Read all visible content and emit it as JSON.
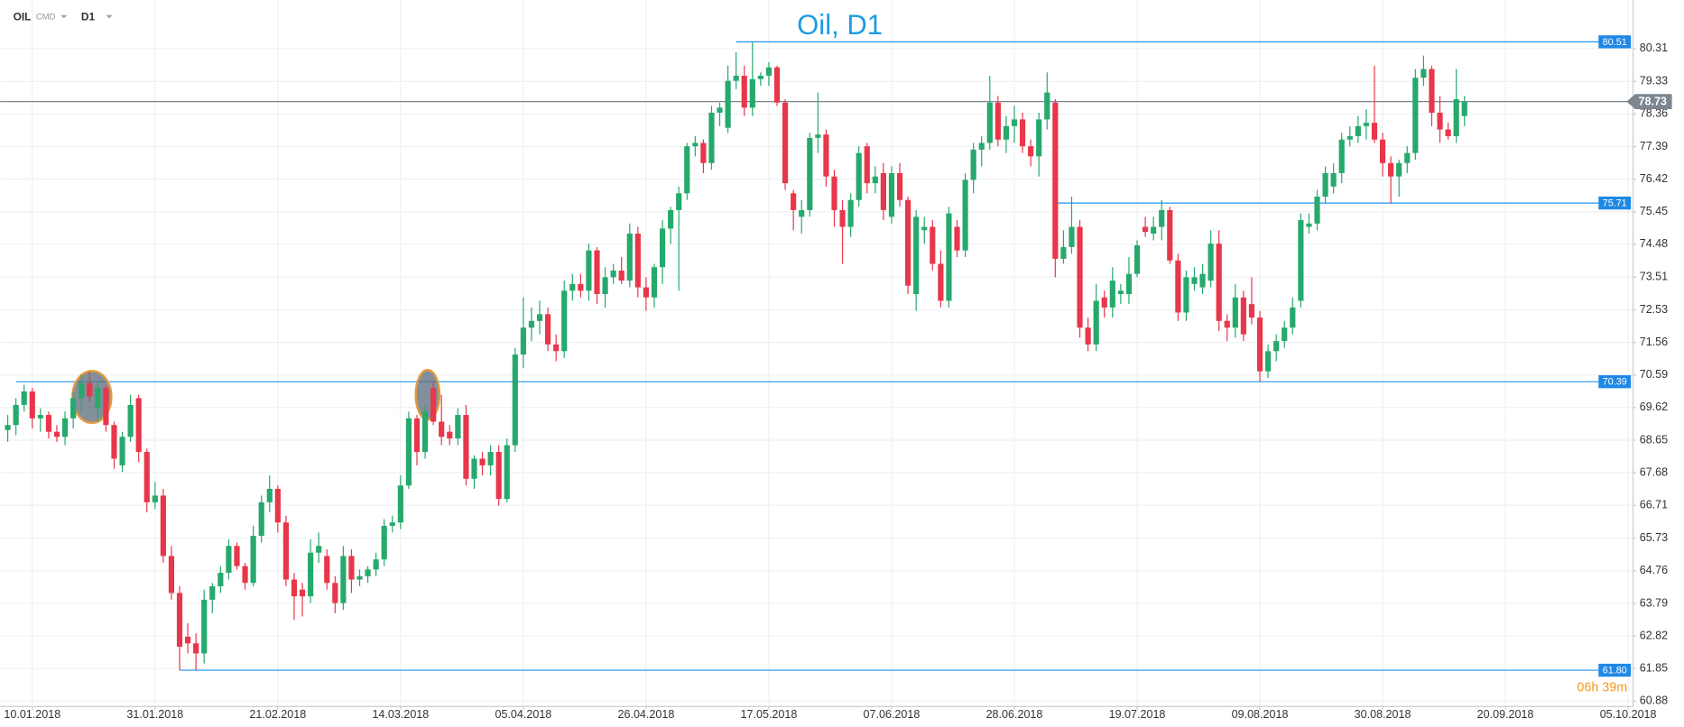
{
  "chart_data": {
    "type": "candlestick",
    "title": "Oil, D1",
    "symbol": "OIL",
    "market": "CMD",
    "timeframe": "D1",
    "countdown": "06h 39m",
    "up_color": "#26a96c",
    "down_color": "#e8364a",
    "level_color": "#2196f3",
    "price_color": "#7d858f",
    "grid": true,
    "xlim": [
      -0.92,
      198.6
    ],
    "xticks": [
      {
        "value": 3,
        "label": "10.01.2018"
      },
      {
        "value": 18,
        "label": "31.01.2018"
      },
      {
        "value": 33,
        "label": "21.02.2018"
      },
      {
        "value": 48,
        "label": "14.03.2018"
      },
      {
        "value": 63,
        "label": "05.04.2018"
      },
      {
        "value": 78,
        "label": "26.04.2018"
      },
      {
        "value": 93,
        "label": "17.05.2018"
      },
      {
        "value": 108,
        "label": "07.06.2018"
      },
      {
        "value": 123,
        "label": "28.06.2018"
      },
      {
        "value": 138,
        "label": "19.07.2018"
      },
      {
        "value": 153,
        "label": "09.08.2018"
      },
      {
        "value": 168,
        "label": "30.08.2018"
      },
      {
        "value": 183,
        "label": "20.09.2018"
      },
      {
        "value": 198,
        "label": "05.10.2018"
      }
    ],
    "ylim": [
      60.72,
      81.755
    ],
    "yticks": [
      80.31,
      79.33,
      78.36,
      77.39,
      76.42,
      75.45,
      74.48,
      73.51,
      72.53,
      71.56,
      70.59,
      69.62,
      68.65,
      67.68,
      66.71,
      65.73,
      64.76,
      63.79,
      62.82,
      61.85,
      60.88
    ],
    "levels": [
      {
        "value": 80.51,
        "from": 89
      },
      {
        "value": 75.71,
        "from": 128
      },
      {
        "value": 70.39,
        "from": 1
      },
      {
        "value": 61.8,
        "label": "61.80",
        "from": 21
      }
    ],
    "last_price": 78.73,
    "ohlc": [
      [
        68.95,
        69.4,
        68.6,
        69.1
      ],
      [
        69.1,
        69.9,
        68.8,
        69.7
      ],
      [
        69.7,
        70.3,
        69.5,
        70.1
      ],
      [
        70.1,
        70.2,
        69.0,
        69.3
      ],
      [
        69.3,
        69.6,
        68.9,
        69.4
      ],
      [
        69.4,
        69.5,
        68.7,
        68.9
      ],
      [
        68.9,
        69.1,
        68.6,
        68.75
      ],
      [
        68.75,
        69.5,
        68.5,
        69.3
      ],
      [
        69.3,
        70.1,
        69.0,
        69.9
      ],
      [
        69.9,
        70.6,
        69.5,
        70.35
      ],
      [
        70.35,
        70.7,
        69.8,
        69.95
      ],
      [
        69.6,
        70.4,
        69.2,
        70.2
      ],
      [
        70.2,
        70.3,
        68.9,
        69.1
      ],
      [
        69.1,
        69.2,
        67.8,
        68.1
      ],
      [
        67.9,
        68.9,
        67.7,
        68.75
      ],
      [
        68.75,
        70.0,
        68.6,
        69.7
      ],
      [
        69.9,
        70.0,
        68.0,
        68.3
      ],
      [
        68.3,
        68.4,
        66.5,
        66.8
      ],
      [
        66.8,
        67.4,
        66.6,
        67.0
      ],
      [
        67.0,
        67.2,
        65.0,
        65.2
      ],
      [
        65.2,
        65.5,
        63.9,
        64.1
      ],
      [
        64.1,
        64.3,
        61.8,
        62.5
      ],
      [
        62.8,
        63.2,
        62.3,
        62.6
      ],
      [
        62.6,
        62.9,
        61.8,
        62.3
      ],
      [
        62.3,
        64.2,
        62.0,
        63.9
      ],
      [
        63.9,
        64.4,
        63.5,
        64.3
      ],
      [
        64.3,
        64.9,
        64.1,
        64.7
      ],
      [
        64.7,
        65.7,
        64.5,
        65.5
      ],
      [
        65.5,
        65.6,
        64.8,
        64.9
      ],
      [
        64.9,
        65.0,
        64.2,
        64.4
      ],
      [
        64.4,
        66.1,
        64.3,
        65.8
      ],
      [
        65.8,
        67.0,
        65.6,
        66.8
      ],
      [
        66.8,
        67.6,
        66.5,
        67.2
      ],
      [
        67.2,
        67.3,
        65.9,
        66.2
      ],
      [
        66.2,
        66.4,
        64.3,
        64.5
      ],
      [
        64.5,
        64.7,
        63.3,
        64.0
      ],
      [
        64.2,
        64.4,
        63.4,
        64.0
      ],
      [
        64.0,
        65.7,
        63.8,
        65.3
      ],
      [
        65.3,
        65.9,
        65.0,
        65.5
      ],
      [
        65.2,
        65.4,
        64.2,
        64.4
      ],
      [
        64.4,
        64.6,
        63.5,
        63.8
      ],
      [
        63.8,
        65.5,
        63.6,
        65.2
      ],
      [
        65.2,
        65.4,
        64.1,
        64.5
      ],
      [
        64.5,
        64.8,
        64.3,
        64.6
      ],
      [
        64.6,
        64.9,
        64.4,
        64.8
      ],
      [
        64.8,
        65.3,
        64.6,
        65.1
      ],
      [
        65.1,
        66.3,
        64.9,
        66.1
      ],
      [
        66.1,
        66.4,
        65.9,
        66.2
      ],
      [
        66.2,
        67.6,
        66.0,
        67.3
      ],
      [
        67.3,
        69.5,
        67.2,
        69.3
      ],
      [
        69.3,
        69.4,
        67.9,
        68.3
      ],
      [
        68.3,
        69.7,
        68.1,
        69.5
      ],
      [
        70.2,
        70.4,
        69.1,
        69.2
      ],
      [
        69.2,
        70.0,
        68.5,
        68.75
      ],
      [
        68.9,
        69.1,
        68.5,
        68.7
      ],
      [
        68.7,
        69.6,
        68.5,
        69.4
      ],
      [
        69.4,
        69.7,
        67.3,
        67.5
      ],
      [
        67.5,
        68.2,
        67.2,
        68.1
      ],
      [
        68.1,
        68.3,
        67.6,
        67.9
      ],
      [
        67.9,
        68.5,
        67.6,
        68.3
      ],
      [
        68.3,
        68.5,
        66.7,
        66.9
      ],
      [
        66.9,
        68.7,
        66.8,
        68.5
      ],
      [
        68.5,
        71.4,
        68.3,
        71.2
      ],
      [
        71.2,
        72.9,
        70.8,
        72.0
      ],
      [
        72.0,
        72.6,
        71.6,
        72.2
      ],
      [
        72.2,
        72.8,
        71.8,
        72.4
      ],
      [
        72.4,
        72.6,
        71.3,
        71.5
      ],
      [
        71.5,
        71.8,
        71.0,
        71.3
      ],
      [
        71.3,
        73.4,
        71.1,
        73.1
      ],
      [
        73.1,
        73.6,
        72.8,
        73.3
      ],
      [
        73.3,
        73.6,
        72.9,
        73.1
      ],
      [
        73.1,
        74.5,
        72.8,
        74.3
      ],
      [
        74.3,
        74.4,
        72.7,
        73.0
      ],
      [
        73.0,
        73.8,
        72.6,
        73.5
      ],
      [
        73.5,
        73.9,
        73.3,
        73.7
      ],
      [
        73.7,
        74.1,
        73.3,
        73.4
      ],
      [
        73.4,
        75.1,
        73.2,
        74.8
      ],
      [
        74.8,
        75.0,
        72.9,
        73.2
      ],
      [
        73.2,
        73.5,
        72.5,
        72.9
      ],
      [
        72.9,
        73.9,
        72.6,
        73.8
      ],
      [
        73.8,
        75.2,
        73.3,
        74.95
      ],
      [
        74.95,
        75.6,
        74.5,
        75.5
      ],
      [
        75.5,
        76.2,
        73.1,
        76.0
      ],
      [
        76.0,
        77.5,
        75.8,
        77.4
      ],
      [
        77.4,
        77.7,
        77.1,
        77.5
      ],
      [
        77.5,
        77.6,
        76.6,
        76.9
      ],
      [
        76.9,
        78.6,
        76.7,
        78.4
      ],
      [
        78.4,
        78.7,
        78.0,
        78.55
      ],
      [
        77.95,
        79.8,
        77.8,
        79.35
      ],
      [
        79.35,
        80.2,
        79.1,
        79.5
      ],
      [
        79.5,
        79.8,
        78.3,
        78.55
      ],
      [
        78.55,
        80.51,
        78.3,
        79.4
      ],
      [
        79.4,
        79.6,
        79.2,
        79.5
      ],
      [
        79.5,
        79.9,
        79.2,
        79.75
      ],
      [
        79.75,
        79.8,
        78.6,
        78.7
      ],
      [
        78.7,
        78.8,
        76.1,
        76.3
      ],
      [
        76.0,
        76.1,
        74.9,
        75.5
      ],
      [
        75.3,
        75.8,
        74.8,
        75.5
      ],
      [
        75.5,
        77.8,
        75.3,
        77.65
      ],
      [
        77.65,
        79.0,
        77.2,
        77.75
      ],
      [
        77.75,
        77.9,
        76.2,
        76.5
      ],
      [
        76.5,
        76.7,
        75.0,
        75.5
      ],
      [
        75.5,
        75.8,
        73.9,
        75.0
      ],
      [
        75.0,
        76.0,
        74.7,
        75.8
      ],
      [
        75.8,
        77.4,
        75.6,
        77.2
      ],
      [
        77.4,
        77.5,
        76.0,
        76.3
      ],
      [
        76.3,
        76.8,
        76.0,
        76.5
      ],
      [
        76.6,
        76.9,
        75.2,
        75.5
      ],
      [
        75.3,
        76.8,
        75.1,
        76.6
      ],
      [
        76.6,
        76.9,
        75.6,
        75.8
      ],
      [
        75.8,
        75.9,
        73.0,
        73.25
      ],
      [
        73.0,
        75.5,
        72.5,
        75.3
      ],
      [
        74.9,
        75.3,
        74.5,
        75.0
      ],
      [
        75.0,
        75.2,
        73.7,
        73.9
      ],
      [
        73.9,
        74.3,
        72.6,
        72.8
      ],
      [
        72.8,
        75.6,
        72.6,
        75.4
      ],
      [
        75.0,
        75.2,
        74.1,
        74.3
      ],
      [
        74.3,
        76.6,
        74.1,
        76.4
      ],
      [
        76.4,
        77.5,
        76.0,
        77.3
      ],
      [
        77.3,
        77.7,
        76.8,
        77.5
      ],
      [
        77.5,
        79.5,
        77.3,
        78.7
      ],
      [
        78.7,
        78.9,
        77.4,
        77.6
      ],
      [
        77.6,
        78.3,
        77.2,
        78.0
      ],
      [
        78.0,
        78.6,
        77.5,
        78.2
      ],
      [
        78.2,
        78.4,
        77.2,
        77.4
      ],
      [
        77.4,
        77.6,
        76.8,
        77.1
      ],
      [
        77.1,
        78.4,
        76.5,
        78.2
      ],
      [
        78.2,
        79.6,
        77.9,
        79.0
      ],
      [
        78.7,
        78.8,
        73.5,
        74.05
      ],
      [
        74.05,
        74.9,
        73.9,
        74.4
      ],
      [
        74.4,
        75.9,
        74.2,
        75.0
      ],
      [
        75.0,
        75.2,
        71.7,
        72.0
      ],
      [
        72.0,
        72.3,
        71.3,
        71.5
      ],
      [
        71.5,
        73.3,
        71.3,
        72.8
      ],
      [
        72.9,
        73.1,
        72.3,
        72.6
      ],
      [
        72.6,
        73.8,
        72.3,
        73.4
      ],
      [
        73.0,
        73.3,
        72.7,
        73.1
      ],
      [
        73.0,
        74.1,
        72.7,
        73.6
      ],
      [
        73.6,
        74.6,
        73.5,
        74.45
      ],
      [
        75.0,
        75.3,
        74.7,
        74.85
      ],
      [
        74.8,
        75.3,
        74.6,
        75.0
      ],
      [
        75.0,
        75.8,
        74.6,
        75.5
      ],
      [
        75.5,
        75.6,
        73.9,
        74.0
      ],
      [
        74.0,
        74.2,
        72.2,
        72.45
      ],
      [
        72.45,
        73.7,
        72.2,
        73.5
      ],
      [
        73.3,
        73.8,
        73.1,
        73.5
      ],
      [
        73.2,
        73.9,
        73.0,
        73.6
      ],
      [
        73.4,
        74.9,
        73.2,
        74.5
      ],
      [
        74.5,
        74.9,
        71.9,
        72.2
      ],
      [
        72.2,
        72.4,
        71.6,
        72.0
      ],
      [
        72.0,
        73.3,
        71.7,
        72.9
      ],
      [
        72.9,
        73.1,
        71.6,
        71.8
      ],
      [
        72.7,
        73.5,
        72.1,
        72.3
      ],
      [
        72.3,
        72.5,
        70.39,
        70.7
      ],
      [
        70.7,
        71.5,
        70.5,
        71.3
      ],
      [
        71.3,
        71.8,
        71.0,
        71.6
      ],
      [
        71.6,
        72.2,
        71.4,
        72.0
      ],
      [
        72.0,
        72.9,
        71.8,
        72.6
      ],
      [
        72.8,
        75.4,
        72.6,
        75.2
      ],
      [
        75.0,
        75.4,
        74.8,
        75.1
      ],
      [
        75.1,
        76.1,
        74.9,
        75.9
      ],
      [
        75.9,
        76.8,
        75.7,
        76.6
      ],
      [
        76.2,
        76.9,
        76.0,
        76.6
      ],
      [
        76.6,
        77.8,
        76.3,
        77.6
      ],
      [
        77.6,
        78.0,
        77.4,
        77.7
      ],
      [
        77.7,
        78.3,
        77.5,
        78.0
      ],
      [
        78.0,
        78.5,
        77.6,
        78.1
      ],
      [
        78.1,
        79.8,
        77.5,
        77.6
      ],
      [
        77.6,
        77.8,
        76.5,
        76.9
      ],
      [
        76.9,
        77.1,
        75.7,
        76.5
      ],
      [
        76.5,
        77.0,
        75.9,
        76.9
      ],
      [
        76.9,
        77.4,
        76.6,
        77.2
      ],
      [
        77.2,
        79.7,
        77.0,
        79.44
      ],
      [
        79.44,
        80.1,
        79.2,
        79.7
      ],
      [
        79.7,
        79.8,
        78.0,
        78.4
      ],
      [
        78.4,
        78.9,
        77.5,
        77.9
      ],
      [
        77.9,
        78.1,
        77.6,
        77.7
      ],
      [
        77.7,
        79.7,
        77.5,
        78.8
      ],
      [
        78.3,
        78.9,
        78.0,
        78.73
      ]
    ]
  }
}
